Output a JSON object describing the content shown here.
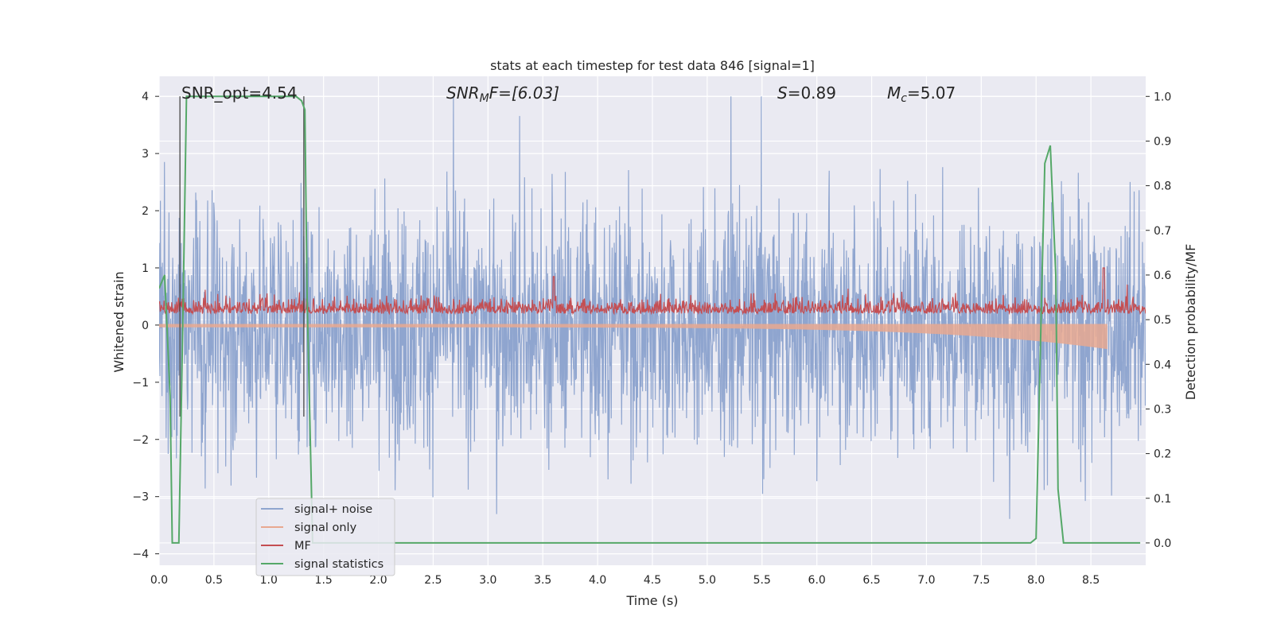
{
  "chart_data": {
    "type": "line",
    "title": "stats at each timestep for test data 846 [signal=1]",
    "xlabel": "Time (s)",
    "ylabel_left": "Whitened strain",
    "ylabel_right": "Detection probability/MF",
    "xlim": [
      0.0,
      9.0
    ],
    "ylim_left": [
      -4.2,
      4.35
    ],
    "ylim_right": [
      -0.05,
      1.045
    ],
    "x_ticks": [
      "0.0",
      "0.5",
      "1.0",
      "1.5",
      "2.0",
      "2.5",
      "3.0",
      "3.5",
      "4.0",
      "4.5",
      "5.0",
      "5.5",
      "6.0",
      "6.5",
      "7.0",
      "7.5",
      "8.0",
      "8.5"
    ],
    "y_ticks_left": [
      "−4",
      "−3",
      "−2",
      "−1",
      "0",
      "1",
      "2",
      "3",
      "4"
    ],
    "y_ticks_right": [
      "0.0",
      "0.1",
      "0.2",
      "0.3",
      "0.4",
      "0.5",
      "0.6",
      "0.7",
      "0.8",
      "0.9",
      "1.0"
    ],
    "grid": true,
    "legend_position": "lower-left",
    "annotations": {
      "snr_opt": "SNR_opt=4.54",
      "snr_mf_base": "SNR",
      "snr_mf_sub": "M",
      "snr_mf_rest": "F=[6.03]",
      "s_label": "S",
      "s_value": "=0.89",
      "mc_label": "M",
      "mc_sub": "c",
      "mc_value": "=5.07"
    },
    "vertical_markers_s": [
      0.19,
      1.32
    ],
    "series": [
      {
        "name": "signal+ noise",
        "color": "#8fa5cf",
        "kind": "noise",
        "axis": "left",
        "approx_envelope": [
          -1.5,
          1.5
        ],
        "peaks": [
          -3.7,
          4.0
        ]
      },
      {
        "name": "signal only",
        "color": "#e8a890",
        "kind": "chirp",
        "axis": "left",
        "end_time": 8.65,
        "end_amplitude": 0.42
      },
      {
        "name": "MF",
        "color": "#c44e52",
        "kind": "mf",
        "axis": "left",
        "baseline": 0.25,
        "peak": 1.0
      },
      {
        "name": "signal statistics",
        "color": "#55a868",
        "axis": "right",
        "x": [
          0.0,
          0.05,
          0.1,
          0.12,
          0.17,
          0.18,
          0.22,
          0.25,
          0.3,
          1.2,
          1.25,
          1.3,
          1.33,
          1.35,
          1.4,
          1.5,
          7.5,
          7.95,
          8.0,
          8.05,
          8.08,
          8.13,
          8.18,
          8.2,
          8.25,
          8.5,
          8.95
        ],
        "y": [
          0.57,
          0.6,
          0.33,
          0.0,
          0.0,
          0.0,
          0.55,
          1.0,
          1.0,
          1.0,
          1.0,
          0.99,
          0.97,
          0.55,
          0.0,
          0.0,
          0.0,
          0.0,
          0.01,
          0.55,
          0.85,
          0.89,
          0.6,
          0.12,
          0.0,
          0.0,
          0.0
        ]
      }
    ]
  }
}
